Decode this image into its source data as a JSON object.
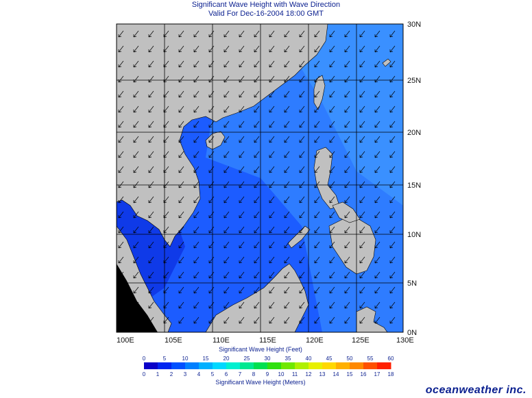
{
  "title": {
    "line1": "Significant Wave Height with Wave Direction",
    "line2": "Valid For Dec-16-2004 18:00 GMT"
  },
  "axes": {
    "lon_labels": [
      "100E",
      "105E",
      "110E",
      "115E",
      "120E",
      "125E",
      "130E"
    ],
    "lat_labels": [
      "0N",
      "5N",
      "10N",
      "15N",
      "20N",
      "25N",
      "30N"
    ]
  },
  "colorbar": {
    "feet_title": "Significant Wave Height (Feet)",
    "meters_title": "Significant Wave Height (Meters)",
    "feet_ticks": [
      "0",
      "5",
      "10",
      "15",
      "20",
      "25",
      "30",
      "35",
      "40",
      "45",
      "50",
      "55",
      "60"
    ],
    "meter_ticks": [
      "0",
      "1",
      "2",
      "3",
      "4",
      "5",
      "6",
      "7",
      "8",
      "9",
      "10",
      "11",
      "12",
      "13",
      "14",
      "15",
      "16",
      "17",
      "18"
    ],
    "colors": [
      "#0a00c8",
      "#0024f0",
      "#0050ff",
      "#0080ff",
      "#00b0ff",
      "#00d8ff",
      "#00f0d0",
      "#00e890",
      "#00e050",
      "#30e010",
      "#70e800",
      "#b0f000",
      "#e8f000",
      "#ffd800",
      "#ffb000",
      "#ff8800",
      "#ff5000",
      "#ff2000"
    ]
  },
  "brand": "oceanweather inc.",
  "colors": {
    "land": "#c0c0c0",
    "ocean": "#1450ff",
    "title": "#0a1f8f"
  }
}
